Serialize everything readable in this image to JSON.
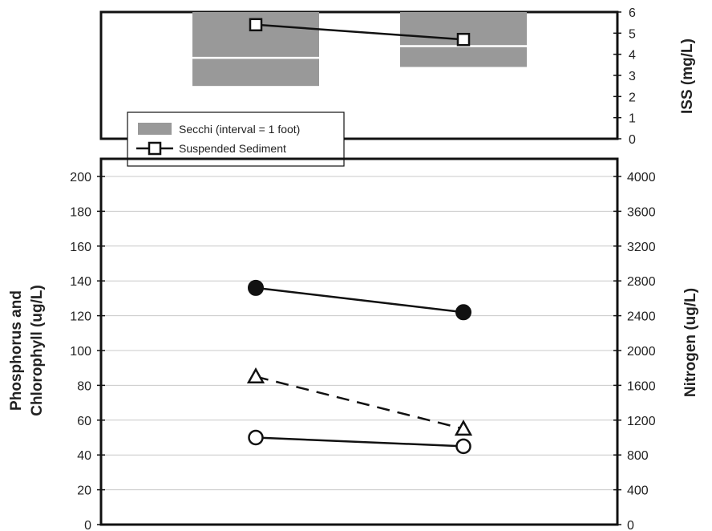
{
  "chart_data": [
    {
      "type": "bar",
      "categories": [
        "",
        ""
      ],
      "right_axis": {
        "label": "ISS (mg/L)",
        "ylim": [
          0,
          6
        ],
        "ticks": [
          "0",
          "1",
          "2",
          "3",
          "4",
          "5",
          "6"
        ]
      },
      "series": [
        {
          "name": "Secchi (interval = 1 foot)",
          "type": "interval-bar",
          "color": "#999999",
          "values": [
            [
              2.5,
              6.0
            ],
            [
              3.4,
              6.0
            ]
          ]
        },
        {
          "name": "Suspended Sediment",
          "type": "line",
          "marker": "open-square",
          "values": [
            5.4,
            4.7
          ]
        }
      ],
      "legend": {
        "placement": "bottom-left",
        "items": [
          "Secchi (interval = 1 foot)",
          "Suspended Sediment"
        ]
      }
    },
    {
      "type": "line",
      "categories": [
        "",
        ""
      ],
      "ylabel": "Phosphorus and Chlorophyll (ug/L)",
      "ylabel_lines": [
        "Phosphorus and",
        "Chlorophyll (ug/L)"
      ],
      "ylim": [
        0,
        200
      ],
      "yticks": [
        "0",
        "20",
        "40",
        "60",
        "80",
        "100",
        "120",
        "140",
        "160",
        "180",
        "200"
      ],
      "right_axis": {
        "label": "Nitrogen (ug/L)",
        "ylim": [
          0,
          4000
        ],
        "ticks": [
          "0",
          "400",
          "800",
          "1200",
          "1600",
          "2000",
          "2400",
          "2800",
          "3200",
          "3600",
          "4000"
        ]
      },
      "grid": true,
      "series": [
        {
          "marker": "filled-circle",
          "line": "solid",
          "values": [
            136,
            122
          ]
        },
        {
          "marker": "open-triangle",
          "line": "dashed",
          "values": [
            85,
            55
          ]
        },
        {
          "marker": "open-circle",
          "line": "solid",
          "values": [
            50,
            45
          ]
        }
      ]
    }
  ]
}
